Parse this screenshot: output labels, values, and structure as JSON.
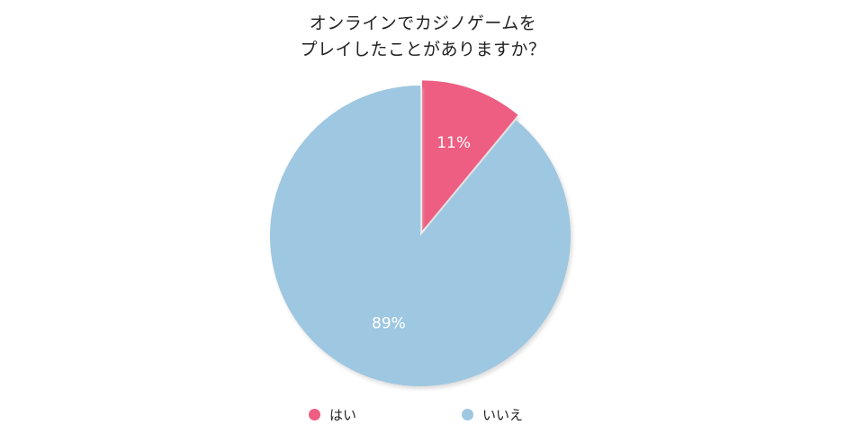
{
  "chart_data": {
    "type": "pie",
    "title_lines": [
      "オンラインでカジノゲームを",
      "プレイしたことがありますか？"
    ],
    "slices": [
      {
        "label": "はい",
        "value": 11,
        "value_label": "11%",
        "color": "#ee5d82",
        "exploded": true
      },
      {
        "label": "いいえ",
        "value": 89,
        "value_label": "89%",
        "color": "#9ec7e1",
        "exploded": false
      }
    ],
    "legend_position": "bottom",
    "start_angle": "12 o'clock, clockwise"
  },
  "colors": {
    "title": "#222222",
    "legend_text": "#222222",
    "slice_label": "#ffffff",
    "shadow": "#d9d9d9"
  }
}
